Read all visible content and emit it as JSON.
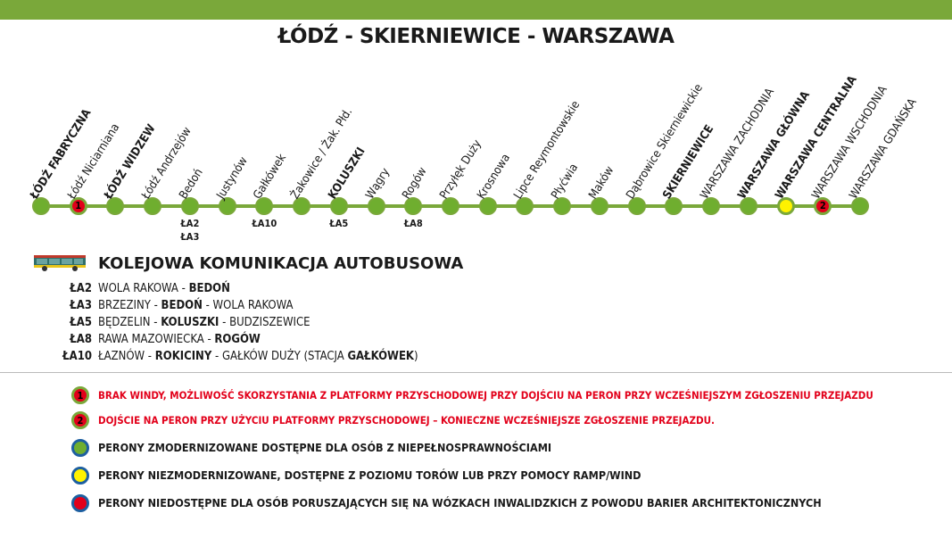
{
  "title": "ŁÓDŹ - SKIERNIEWICE - WARSZAWA",
  "colors": {
    "line": "#7aa83a",
    "station_green": "#6fae2f",
    "yellow": "#fff200",
    "red": "#e2001a",
    "legend_ring_blue": "#1d5fa0"
  },
  "stations": [
    {
      "name": "ŁÓDŹ FABRYCZNA",
      "bold": true,
      "type": "green"
    },
    {
      "name": "Łódź Niciarniana",
      "bold": false,
      "type": "note",
      "note": "1"
    },
    {
      "name": "ŁÓDŹ WIDZEW",
      "bold": true,
      "type": "green"
    },
    {
      "name": "Łódź Andrzejów",
      "bold": false,
      "type": "green"
    },
    {
      "name": "Bedoń",
      "bold": false,
      "type": "green",
      "bus": "ŁA2\nŁA3"
    },
    {
      "name": "Justynów",
      "bold": false,
      "type": "green"
    },
    {
      "name": "Gałkówek",
      "bold": false,
      "type": "green",
      "bus": "ŁA10"
    },
    {
      "name": "Żakowice / Żak. Płd.",
      "bold": false,
      "type": "green"
    },
    {
      "name": "KOLUSZKI",
      "bold": true,
      "type": "green",
      "bus": "ŁA5"
    },
    {
      "name": "Wągry",
      "bold": false,
      "type": "green"
    },
    {
      "name": "Rogów",
      "bold": false,
      "type": "green",
      "bus": "ŁA8"
    },
    {
      "name": "Przyłęk Duży",
      "bold": false,
      "type": "green"
    },
    {
      "name": "Krosnowa",
      "bold": false,
      "type": "green"
    },
    {
      "name": "Lipce Reymontowskie",
      "bold": false,
      "type": "green"
    },
    {
      "name": "Płyćwia",
      "bold": false,
      "type": "green"
    },
    {
      "name": "Maków",
      "bold": false,
      "type": "green"
    },
    {
      "name": "Dąbrowice Skierniewickie",
      "bold": false,
      "type": "green"
    },
    {
      "name": "SKIERNIEWICE",
      "bold": true,
      "type": "green"
    },
    {
      "name": "WARSZAWA ZACHODNIA",
      "bold": false,
      "type": "green"
    },
    {
      "name": "WARSZAWA GŁÓWNA",
      "bold": true,
      "type": "green"
    },
    {
      "name": "WARSZAWA CENTRALNA",
      "bold": true,
      "type": "yellow"
    },
    {
      "name": "WARSZAWA WSCHODNIA",
      "bold": false,
      "type": "note",
      "note": "2"
    },
    {
      "name": "WARSZAWA GDAŃSKA",
      "bold": false,
      "type": "green"
    }
  ],
  "bus": {
    "heading": "KOLEJOWA KOMUNIKACJA AUTOBUSOWA",
    "icon": "bus-icon",
    "routes": [
      {
        "code": "ŁA2",
        "parts": [
          {
            "t": "WOLA RAKOWA - ",
            "b": false
          },
          {
            "t": "BEDOŃ",
            "b": true
          }
        ]
      },
      {
        "code": "ŁA3",
        "parts": [
          {
            "t": "BRZEZINY - ",
            "b": false
          },
          {
            "t": "BEDOŃ",
            "b": true
          },
          {
            "t": " - WOLA RAKOWA",
            "b": false
          }
        ]
      },
      {
        "code": "ŁA5",
        "parts": [
          {
            "t": "BĘDZELIN - ",
            "b": false
          },
          {
            "t": "KOLUSZKI",
            "b": true
          },
          {
            "t": " - BUDZISZEWICE",
            "b": false
          }
        ]
      },
      {
        "code": "ŁA8",
        "parts": [
          {
            "t": "RAWA MAZOWIECKA - ",
            "b": false
          },
          {
            "t": "ROGÓW",
            "b": true
          }
        ]
      },
      {
        "code": "ŁA10",
        "parts": [
          {
            "t": "ŁAZNÓW - ",
            "b": false
          },
          {
            "t": "ROKICINY",
            "b": true
          },
          {
            "t": " - GAŁKÓW DUŻY (STACJA ",
            "b": false
          },
          {
            "t": "GAŁKÓWEK",
            "b": true
          },
          {
            "t": ")",
            "b": false
          }
        ]
      }
    ]
  },
  "legend": [
    {
      "marker": "1",
      "fill": "#e2001a",
      "ring": "#7aa83a",
      "text": "BRAK WINDY, MOŻLIWOŚĆ SKORZYSTANIA Z PLATFORMY PRZYSCHODOWEJ PRZY DOJŚCIU NA PERON PRZY WCZEŚNIEJSZYM ZGŁOSZENIU PRZEJAZDU",
      "red": true
    },
    {
      "marker": "2",
      "fill": "#e2001a",
      "ring": "#7aa83a",
      "text": "DOJŚCIE NA PERON PRZY UŻYCIU PLATFORMY PRZYSCHODOWEJ – KONIECZNE WCZEŚNIEJSZE ZGŁOSZENIE PRZEJAZDU.",
      "red": true
    },
    {
      "marker": "",
      "fill": "#6fae2f",
      "ring": "#1d5fa0",
      "text": "PERONY ZMODERNIZOWANE DOSTĘPNE DLA OSÓB Z NIEPEŁNOSPRAWNOŚCIAMI",
      "red": false
    },
    {
      "marker": "",
      "fill": "#fff200",
      "ring": "#1d5fa0",
      "text": "PERONY NIEZMODERNIZOWANE, DOSTĘPNE Z POZIOMU TORÓW LUB PRZY POMOCY RAMP/WIND",
      "red": false
    },
    {
      "marker": "",
      "fill": "#e2001a",
      "ring": "#1d5fa0",
      "text": "PERONY NIEDOSTĘPNE DLA OSÓB PORUSZAJĄCYCH SIĘ NA WÓZKACH INWALIDZKICH Z POWODU BARIER ARCHITEKTONICZNYCH",
      "red": false
    }
  ]
}
